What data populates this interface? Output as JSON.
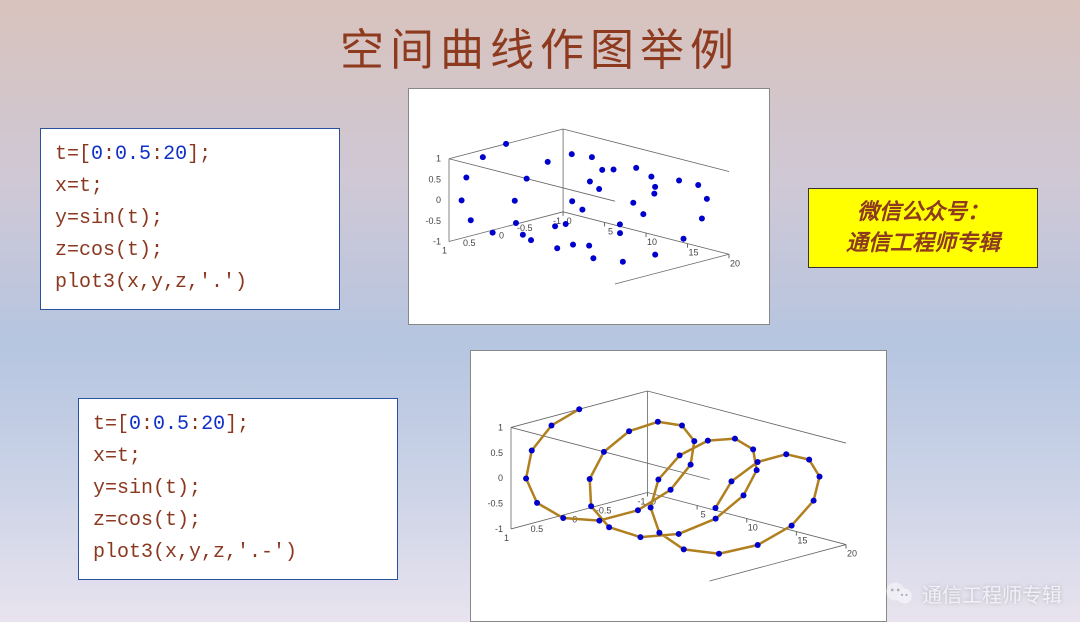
{
  "title": "空间曲线作图举例",
  "code1": {
    "lines": [
      [
        [
          "t=[",
          "kw"
        ],
        [
          "0",
          "num"
        ],
        [
          ":",
          "kw"
        ],
        [
          "0.5",
          "num"
        ],
        [
          ":",
          "kw"
        ],
        [
          "20",
          "num"
        ],
        [
          "];",
          "kw"
        ]
      ],
      [
        [
          "x=t;",
          "kw"
        ]
      ],
      [
        [
          "y=sin(t);",
          "kw"
        ]
      ],
      [
        [
          "z=cos(t);",
          "kw"
        ]
      ],
      [
        [
          "plot3(x,y,z,'.')",
          "kw"
        ]
      ]
    ]
  },
  "code2": {
    "lines": [
      [
        [
          "t=[",
          "kw"
        ],
        [
          "0",
          "num"
        ],
        [
          ":",
          "kw"
        ],
        [
          "0.5",
          "num"
        ],
        [
          ":",
          "kw"
        ],
        [
          "20",
          "num"
        ],
        [
          "];",
          "kw"
        ]
      ],
      [
        [
          "x=t;",
          "kw"
        ]
      ],
      [
        [
          "y=sin(t);",
          "kw"
        ]
      ],
      [
        [
          "z=cos(t);",
          "kw"
        ]
      ],
      [
        [
          "plot3(x,y,z,'.-')",
          "kw"
        ]
      ]
    ]
  },
  "badge": {
    "line1": "微信公众号：",
    "line2": "通信工程师专辑"
  },
  "watermark_text": "通信工程师专辑",
  "plot": {
    "t_start": 0,
    "t_step": 0.5,
    "t_end": 20,
    "marker_color": "#0000cc",
    "marker_radius": 3,
    "line_color": "#b08020",
    "line_width": 2.5,
    "axes_color": "#666",
    "grid_color": "#ddd",
    "x_ticks": [
      0,
      5,
      10,
      15,
      20
    ],
    "y_ticks": [
      -1,
      -0.5,
      0,
      0.5,
      1
    ],
    "z_ticks": [
      -1,
      -0.5,
      0,
      0.5,
      1
    ]
  },
  "fig_bg": "#ffffff"
}
